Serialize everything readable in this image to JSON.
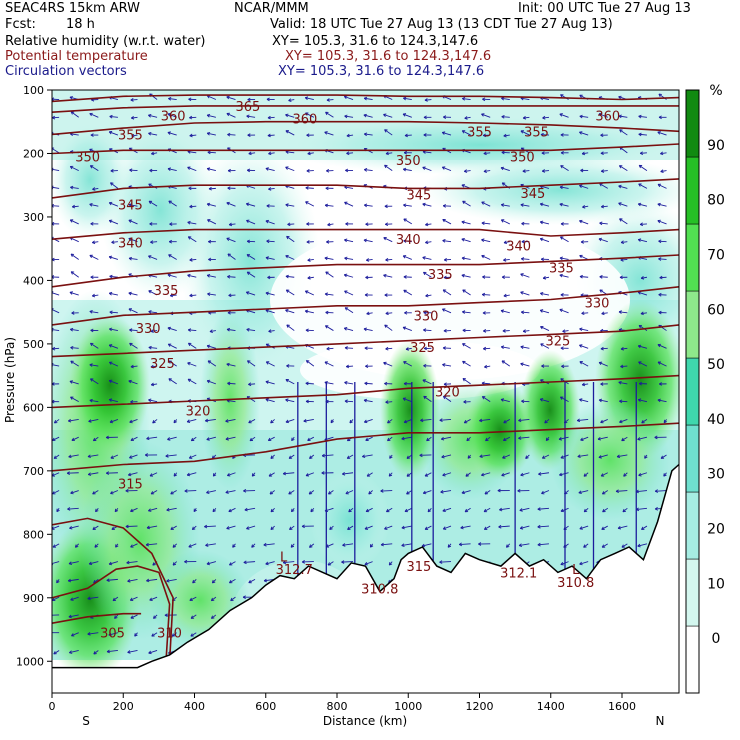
{
  "header": {
    "model": "SEAC4RS 15km ARW",
    "org": "NCAR/MMM",
    "init": "Init: 00 UTC Tue 27 Aug 13",
    "fcst_label": "Fcst:",
    "fcst_value": "18 h",
    "valid": "Valid: 18 UTC Tue 27 Aug 13 (13 CDT Tue 27 Aug 13)",
    "field1": "Relative humidity (w.r.t. water)",
    "field1_xy": "XY= 105.3, 31.6 to 124.3,147.6",
    "field2": "Potential temperature",
    "field2_xy": "XY= 105.3, 31.6 to 124.3,147.6",
    "field3": "Circulation vectors",
    "field3_xy": "XY= 105.3, 31.6 to 124.3,147.6"
  },
  "colors": {
    "theta": "#7a1010",
    "field2_text": "#8b1a1a",
    "field3_text": "#1a1a8b",
    "vector": "#1c1c9c",
    "terrain": "#000000"
  },
  "chart_data": {
    "type": "heatmap",
    "xlabel": "Distance (km)",
    "ylabel": "Pressure (hPa)",
    "xlim": [
      0,
      1760
    ],
    "ylim": [
      1050,
      100
    ],
    "x_ticks": [
      0,
      200,
      400,
      600,
      800,
      1000,
      1200,
      1400,
      1600
    ],
    "y_ticks": [
      100,
      200,
      300,
      400,
      500,
      600,
      700,
      800,
      900,
      1000
    ],
    "x_end_labels": [
      "S",
      "N"
    ],
    "colorbar": {
      "unit": "%",
      "ticks": [
        0,
        10,
        20,
        30,
        40,
        50,
        60,
        70,
        80,
        90
      ],
      "levels": [
        30,
        40,
        50,
        60,
        70,
        80,
        90
      ],
      "colors": [
        "#ffffff",
        "#d4f7ef",
        "#a6ede3",
        "#6fe0cf",
        "#3fd7ad",
        "#8ee88b",
        "#52e052",
        "#26c026",
        "#118a11"
      ]
    },
    "isentropes": [
      {
        "label": "305",
        "points": [
          [
            0,
            940
          ],
          [
            100,
            930
          ],
          [
            200,
            925
          ],
          [
            250,
            925
          ]
        ]
      },
      {
        "label": "310",
        "points": [
          [
            0,
            900
          ],
          [
            100,
            885
          ],
          [
            180,
            855
          ],
          [
            240,
            850
          ],
          [
            300,
            860
          ],
          [
            330,
            910
          ],
          [
            320,
            1000
          ]
        ]
      },
      {
        "label": "",
        "points": [
          [
            0,
            785
          ],
          [
            100,
            775
          ],
          [
            200,
            790
          ],
          [
            280,
            830
          ],
          [
            340,
            900
          ],
          [
            330,
            1000
          ]
        ]
      },
      {
        "label": "315",
        "points": [
          [
            0,
            700
          ],
          [
            200,
            690
          ],
          [
            400,
            685
          ],
          [
            600,
            670
          ],
          [
            800,
            650
          ],
          [
            1000,
            640
          ],
          [
            1200,
            640
          ],
          [
            1400,
            635
          ],
          [
            1600,
            630
          ],
          [
            1760,
            625
          ]
        ]
      },
      {
        "label": "320",
        "points": [
          [
            0,
            600
          ],
          [
            200,
            595
          ],
          [
            400,
            590
          ],
          [
            600,
            585
          ],
          [
            800,
            580
          ],
          [
            1000,
            570
          ],
          [
            1200,
            565
          ],
          [
            1400,
            560
          ],
          [
            1600,
            555
          ],
          [
            1760,
            550
          ]
        ]
      },
      {
        "label": "325",
        "points": [
          [
            0,
            520
          ],
          [
            200,
            515
          ],
          [
            400,
            510
          ],
          [
            600,
            505
          ],
          [
            800,
            500
          ],
          [
            1000,
            495
          ],
          [
            1200,
            490
          ],
          [
            1400,
            485
          ],
          [
            1600,
            480
          ],
          [
            1760,
            470
          ]
        ]
      },
      {
        "label": "330",
        "points": [
          [
            0,
            470
          ],
          [
            200,
            455
          ],
          [
            400,
            450
          ],
          [
            600,
            445
          ],
          [
            800,
            440
          ],
          [
            1000,
            440
          ],
          [
            1200,
            435
          ],
          [
            1400,
            430
          ],
          [
            1600,
            420
          ],
          [
            1760,
            410
          ]
        ]
      },
      {
        "label": "335",
        "points": [
          [
            0,
            410
          ],
          [
            200,
            395
          ],
          [
            400,
            385
          ],
          [
            600,
            380
          ],
          [
            800,
            375
          ],
          [
            1000,
            375
          ],
          [
            1200,
            375
          ],
          [
            1400,
            370
          ],
          [
            1600,
            365
          ],
          [
            1760,
            360
          ]
        ]
      },
      {
        "label": "340",
        "points": [
          [
            0,
            335
          ],
          [
            200,
            325
          ],
          [
            400,
            320
          ],
          [
            600,
            320
          ],
          [
            800,
            320
          ],
          [
            1000,
            320
          ],
          [
            1200,
            320
          ],
          [
            1400,
            330
          ],
          [
            1600,
            325
          ],
          [
            1760,
            320
          ]
        ]
      },
      {
        "label": "345",
        "points": [
          [
            0,
            270
          ],
          [
            200,
            255
          ],
          [
            400,
            250
          ],
          [
            600,
            250
          ],
          [
            800,
            250
          ],
          [
            1000,
            255
          ],
          [
            1200,
            255
          ],
          [
            1400,
            250
          ],
          [
            1600,
            245
          ],
          [
            1760,
            240
          ]
        ]
      },
      {
        "label": "350",
        "points": [
          [
            0,
            200
          ],
          [
            200,
            195
          ],
          [
            400,
            195
          ],
          [
            600,
            195
          ],
          [
            800,
            195
          ],
          [
            1000,
            195
          ],
          [
            1200,
            195
          ],
          [
            1400,
            195
          ],
          [
            1600,
            190
          ],
          [
            1760,
            185
          ]
        ]
      },
      {
        "label": "355",
        "points": [
          [
            0,
            170
          ],
          [
            200,
            160
          ],
          [
            400,
            152
          ],
          [
            600,
            150
          ],
          [
            800,
            150
          ],
          [
            1000,
            150
          ],
          [
            1200,
            152
          ],
          [
            1400,
            155
          ],
          [
            1600,
            160
          ],
          [
            1760,
            165
          ]
        ]
      },
      {
        "label": "360",
        "points": [
          [
            0,
            135
          ],
          [
            200,
            128
          ],
          [
            400,
            125
          ],
          [
            600,
            125
          ],
          [
            800,
            125
          ],
          [
            1000,
            125
          ],
          [
            1200,
            125
          ],
          [
            1400,
            125
          ],
          [
            1600,
            125
          ],
          [
            1760,
            125
          ]
        ]
      },
      {
        "label": "365",
        "points": [
          [
            0,
            118
          ],
          [
            200,
            110
          ],
          [
            400,
            108
          ],
          [
            600,
            108
          ],
          [
            800,
            108
          ],
          [
            1000,
            110
          ],
          [
            1200,
            110
          ],
          [
            1400,
            112
          ],
          [
            1600,
            115
          ],
          [
            1760,
            112
          ]
        ]
      }
    ],
    "isentrope_label_positions": [
      {
        "text": "305",
        "x": 170,
        "p": 955
      },
      {
        "text": "310",
        "x": 330,
        "p": 955
      },
      {
        "text": "315",
        "x": 220,
        "p": 720
      },
      {
        "text": "320",
        "x": 410,
        "p": 605
      },
      {
        "text": "320",
        "x": 1110,
        "p": 575
      },
      {
        "text": "325",
        "x": 310,
        "p": 530
      },
      {
        "text": "325",
        "x": 1040,
        "p": 505
      },
      {
        "text": "325",
        "x": 1420,
        "p": 495
      },
      {
        "text": "330",
        "x": 270,
        "p": 475
      },
      {
        "text": "330",
        "x": 1050,
        "p": 455
      },
      {
        "text": "330",
        "x": 1530,
        "p": 435
      },
      {
        "text": "335",
        "x": 320,
        "p": 415
      },
      {
        "text": "335",
        "x": 1090,
        "p": 390
      },
      {
        "text": "335",
        "x": 1430,
        "p": 380
      },
      {
        "text": "340",
        "x": 220,
        "p": 340
      },
      {
        "text": "340",
        "x": 1000,
        "p": 335
      },
      {
        "text": "340",
        "x": 1310,
        "p": 345
      },
      {
        "text": "345",
        "x": 220,
        "p": 280
      },
      {
        "text": "345",
        "x": 1030,
        "p": 265
      },
      {
        "text": "345",
        "x": 1350,
        "p": 262
      },
      {
        "text": "350",
        "x": 100,
        "p": 205
      },
      {
        "text": "350",
        "x": 1000,
        "p": 210
      },
      {
        "text": "350",
        "x": 1320,
        "p": 205
      },
      {
        "text": "355",
        "x": 220,
        "p": 170
      },
      {
        "text": "355",
        "x": 1200,
        "p": 165
      },
      {
        "text": "355",
        "x": 1360,
        "p": 165
      },
      {
        "text": "360",
        "x": 340,
        "p": 140
      },
      {
        "text": "360",
        "x": 710,
        "p": 145
      },
      {
        "text": "360",
        "x": 1560,
        "p": 140
      },
      {
        "text": "365",
        "x": 550,
        "p": 125
      }
    ],
    "annotations": [
      {
        "text": "L",
        "x": 650,
        "p": 835
      },
      {
        "text": "312.7",
        "x": 680,
        "p": 855
      },
      {
        "text": "310.8",
        "x": 920,
        "p": 885
      },
      {
        "text": "315",
        "x": 1030,
        "p": 850
      },
      {
        "text": "312.1",
        "x": 1310,
        "p": 860
      },
      {
        "text": "L",
        "x": 1470,
        "p": 855
      },
      {
        "text": "310.8",
        "x": 1470,
        "p": 875
      }
    ],
    "terrain": [
      [
        0,
        1010
      ],
      [
        240,
        1010
      ],
      [
        280,
        1000
      ],
      [
        330,
        990
      ],
      [
        380,
        970
      ],
      [
        440,
        950
      ],
      [
        500,
        920
      ],
      [
        560,
        900
      ],
      [
        600,
        880
      ],
      [
        640,
        865
      ],
      [
        680,
        870
      ],
      [
        720,
        850
      ],
      [
        760,
        860
      ],
      [
        800,
        870
      ],
      [
        840,
        845
      ],
      [
        880,
        850
      ],
      [
        920,
        890
      ],
      [
        960,
        870
      ],
      [
        980,
        840
      ],
      [
        1000,
        830
      ],
      [
        1040,
        820
      ],
      [
        1080,
        850
      ],
      [
        1120,
        860
      ],
      [
        1160,
        830
      ],
      [
        1200,
        840
      ],
      [
        1260,
        850
      ],
      [
        1300,
        830
      ],
      [
        1340,
        850
      ],
      [
        1380,
        840
      ],
      [
        1420,
        860
      ],
      [
        1460,
        850
      ],
      [
        1500,
        870
      ],
      [
        1540,
        840
      ],
      [
        1580,
        830
      ],
      [
        1620,
        820
      ],
      [
        1660,
        840
      ],
      [
        1700,
        780
      ],
      [
        1740,
        700
      ],
      [
        1760,
        690
      ]
    ]
  }
}
